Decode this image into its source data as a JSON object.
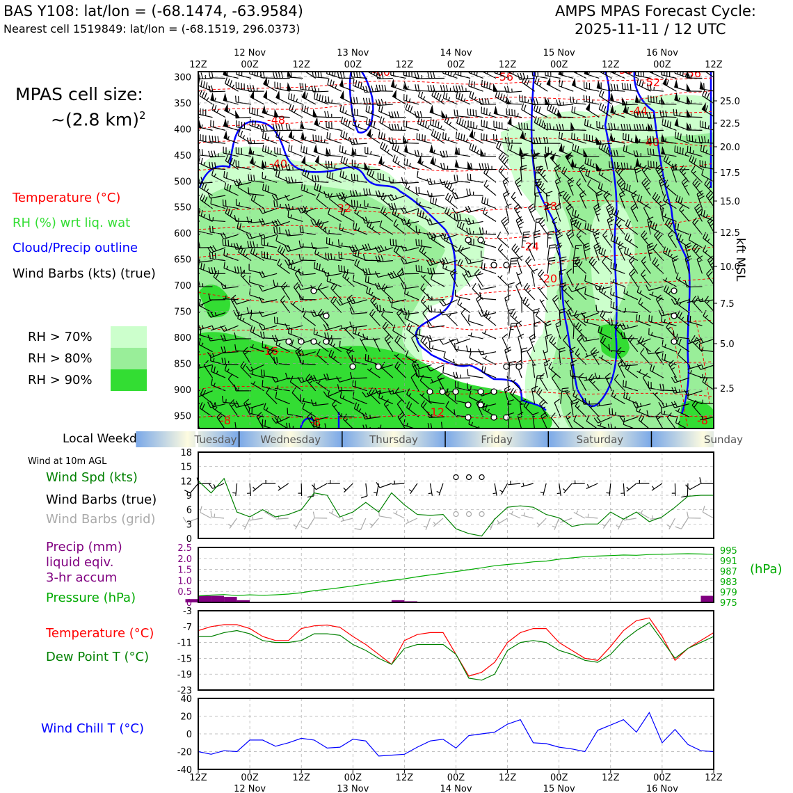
{
  "header": {
    "station": "BAS Y108: lat/lon = (-68.1474, -63.9584)",
    "nearest_cell": "Nearest cell 1519849: lat/lon = (-68.1519, 296.0373)",
    "cycle_title": "AMPS MPAS Forecast Cycle:",
    "cycle_date": "2025-11-11 / 12 UTC"
  },
  "left_panel": {
    "cell_size_line1": "MPAS cell size:",
    "cell_size_line2": "~(2.8 km)",
    "cell_size_sup": "2",
    "legend": [
      {
        "label": "Temperature (°C)",
        "color": "#ff0000"
      },
      {
        "label": "RH (%) wrt liq. wat",
        "color": "#33dd33"
      },
      {
        "label": "Cloud/Precip outline",
        "color": "#0000ff"
      },
      {
        "label": "Wind Barbs (kts) (true)",
        "color": "#000000"
      }
    ],
    "rh_legend": [
      {
        "label": "RH > 70%",
        "color": "#ccffcc"
      },
      {
        "label": "RH > 80%",
        "color": "#99ee99"
      },
      {
        "label": "RH > 90%",
        "color": "#33dd33"
      }
    ],
    "weekday_label": "Local Weekday",
    "wind_10m_label": "Wind at 10m AGL",
    "panel1_labels": [
      {
        "label": "Wind Spd (kts)",
        "color": "#008000"
      },
      {
        "label": "Wind Barbs (true)",
        "color": "#000000"
      },
      {
        "label": "Wind Barbs (grid)",
        "color": "#aaaaaa"
      }
    ],
    "panel2_labels": [
      {
        "label": "Precip (mm)",
        "color": "#800080"
      },
      {
        "label": "liquid eqiv.",
        "color": "#800080"
      },
      {
        "label": "3-hr accum",
        "color": "#800080"
      },
      {
        "label": "Pressure (hPa)",
        "color": "#00aa00"
      }
    ],
    "panel3_labels": [
      {
        "label": "Temperature (°C)",
        "color": "#ff0000"
      },
      {
        "label": "Dew Point T (°C)",
        "color": "#008000"
      }
    ],
    "panel4_labels": [
      {
        "label": "Wind Chill T (°C)",
        "color": "#0000ff"
      }
    ]
  },
  "time_axis": {
    "hour_ticks": [
      "12Z",
      "00Z",
      "12Z",
      "00Z",
      "12Z",
      "00Z",
      "12Z",
      "00Z",
      "12Z",
      "00Z",
      "12Z"
    ],
    "date_ticks": [
      "12 Nov",
      "13 Nov",
      "14 Nov",
      "15 Nov",
      "16 Nov"
    ]
  },
  "weekdays": [
    "Tuesday",
    "Wednesday",
    "Thursday",
    "Friday",
    "Saturday",
    "Sunday"
  ],
  "chart_data": [
    {
      "type": "heatmap",
      "name": "upper-air-crosssection",
      "y_axis_left": {
        "label": "",
        "ticks": [
          "300",
          "350",
          "400",
          "450",
          "500",
          "550",
          "600",
          "650",
          "700",
          "750",
          "800",
          "850",
          "900",
          "950"
        ],
        "range": [
          290,
          975
        ]
      },
      "y_axis_right": {
        "label": "kft MSL",
        "ticks": [
          "25.0",
          "22.5",
          "20.0",
          "17.5",
          "15.0",
          "12.5",
          "10.0",
          "7.5",
          "5.0",
          "2.5"
        ]
      },
      "temperature_contour_labels": [
        "-60",
        "-56",
        "-56",
        "-56",
        "-52",
        "-48",
        "-44",
        "-40",
        "-40",
        "-32",
        "-28",
        "-24",
        "-20",
        "-16",
        "-12",
        "-8",
        "-8",
        "-8"
      ]
    },
    {
      "type": "line",
      "name": "wind-speed-10m",
      "ylim": [
        0,
        18
      ],
      "yticks": [
        "0",
        "3",
        "6",
        "9",
        "12",
        "15",
        "18"
      ],
      "x_hours": [
        0,
        3,
        6,
        9,
        12,
        15,
        18,
        21,
        24,
        27,
        30,
        33,
        36,
        39,
        42,
        45,
        48,
        51,
        54,
        57,
        60,
        63,
        66,
        69,
        72,
        75,
        78,
        81,
        84,
        87,
        90,
        93,
        96,
        99,
        102,
        105,
        108,
        111,
        114,
        117,
        120
      ],
      "series": [
        {
          "values": [
            12,
            9.5,
            12.5,
            5.5,
            4.5,
            6,
            4.5,
            5,
            6,
            9.5,
            9,
            4.5,
            5.5,
            7.5,
            5.5,
            9.5,
            7,
            5,
            4.8,
            5,
            2,
            1,
            0.5,
            4,
            6.5,
            6.8,
            6.5,
            5,
            4.3,
            2.5,
            3,
            3,
            5.5,
            4,
            5.5,
            3.5,
            4.5,
            6.5,
            8.8,
            9,
            9
          ]
        }
      ]
    },
    {
      "type": "bar",
      "name": "precip-pressure",
      "precip_ylim": [
        0,
        2.5
      ],
      "precip_yticks": [
        "0",
        "0.5",
        "1.0",
        "1.5",
        "2.0",
        "2.5"
      ],
      "pressure_ylim": [
        975,
        996
      ],
      "pressure_yticks": [
        "995",
        "991",
        "987",
        "983",
        "979",
        "975"
      ],
      "pressure_unit": "(hPa)",
      "precip_values": [
        0.15,
        0.3,
        0.3,
        0.25,
        0.1,
        0,
        0,
        0,
        0,
        0,
        0,
        0,
        0,
        0,
        0,
        0,
        0.1,
        0.05,
        0,
        0,
        0,
        0,
        0,
        0,
        0,
        0,
        0,
        0,
        0,
        0,
        0,
        0,
        0,
        0,
        0,
        0,
        0,
        0,
        0,
        0,
        0.3
      ],
      "pressure_values": [
        977.5,
        977.8,
        978,
        977.6,
        977.9,
        977.7,
        977.9,
        978.2,
        978.7,
        979.5,
        980,
        980.6,
        981.3,
        982,
        982.7,
        983.4,
        984,
        984.8,
        985.5,
        986.1,
        986.8,
        987.5,
        988.2,
        989,
        989.5,
        989.9,
        990.5,
        990.8,
        991.5,
        992,
        992.5,
        992.7,
        992.9,
        993.1,
        993,
        993.3,
        993.4,
        993.5,
        993.6,
        993.5,
        993.4
      ]
    },
    {
      "type": "line",
      "name": "temperature-dewpoint",
      "ylim": [
        -23,
        -3
      ],
      "yticks": [
        "-3",
        "-7",
        "-11",
        "-15",
        "-19",
        "-23"
      ],
      "series": [
        {
          "name": "Temperature (°C)",
          "color": "#ff0000",
          "values": [
            -8,
            -7,
            -6.5,
            -6.5,
            -7.5,
            -9.5,
            -10.5,
            -10.5,
            -7.5,
            -6.8,
            -6.6,
            -7.2,
            -9.5,
            -11.5,
            -14,
            -16.5,
            -10.5,
            -9,
            -8.5,
            -8.5,
            -14,
            -19.5,
            -18.5,
            -16,
            -11,
            -8.5,
            -7.5,
            -7.5,
            -11,
            -13,
            -15,
            -15.5,
            -12,
            -8,
            -5.5,
            -4.8,
            -9.5,
            -15.5,
            -12.5,
            -10.5,
            -8.5
          ]
        },
        {
          "name": "Dew Point T (°C)",
          "color": "#008000",
          "values": [
            -9.5,
            -9.5,
            -8.5,
            -8,
            -8.8,
            -10.5,
            -11,
            -11,
            -10.5,
            -8.8,
            -8.8,
            -9.2,
            -11.5,
            -13,
            -15,
            -16.5,
            -12.5,
            -11.5,
            -11.5,
            -11.5,
            -14,
            -20,
            -20.5,
            -19,
            -13,
            -11,
            -10.5,
            -11,
            -13,
            -14,
            -15.5,
            -16,
            -14,
            -10.5,
            -8,
            -6,
            -10.5,
            -15,
            -12.5,
            -11,
            -9.5
          ]
        }
      ]
    },
    {
      "type": "line",
      "name": "wind-chill",
      "ylim": [
        -40,
        40
      ],
      "yticks": [
        "40",
        "20",
        "0",
        "-20",
        "-40"
      ],
      "series": [
        {
          "name": "Wind Chill T (°C)",
          "color": "#0000ff",
          "values": [
            -20,
            -23,
            -19,
            -20,
            -7,
            -7,
            -14,
            -10,
            -5,
            -7,
            -16,
            -15,
            -6,
            -8,
            -25,
            -24,
            -23,
            -15,
            -8,
            -6,
            -16,
            -2,
            0,
            2,
            11,
            16,
            -10,
            -11,
            -15,
            -17,
            -20,
            4,
            10,
            16,
            2,
            24,
            -10,
            5,
            -12,
            -19,
            -20
          ]
        }
      ]
    }
  ]
}
